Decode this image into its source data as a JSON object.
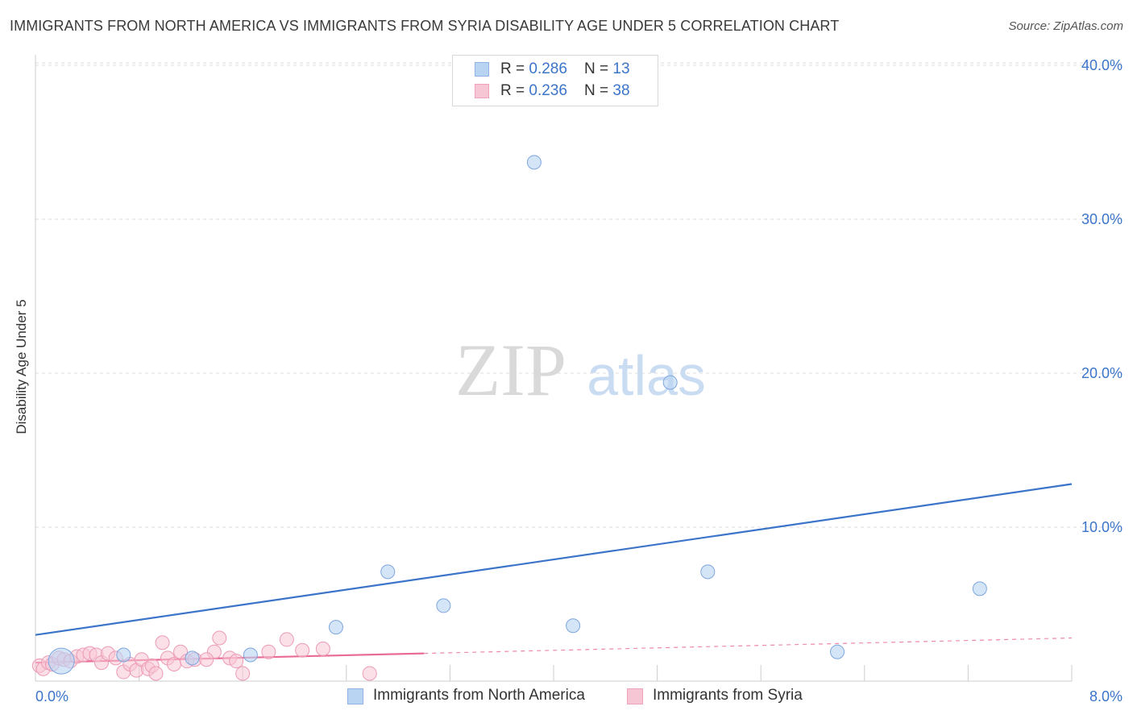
{
  "header": {
    "title": "IMMIGRANTS FROM NORTH AMERICA VS IMMIGRANTS FROM SYRIA DISABILITY AGE UNDER 5 CORRELATION CHART",
    "source": "Source: ZipAtlas.com"
  },
  "colors": {
    "blue": "#3b74c9",
    "blue_fill": "#b9d3f3",
    "pink": "#e96c94",
    "pink_fill": "#f7c6d5",
    "tick_text": "#3b74c9",
    "grid": "#dddddd"
  },
  "legend": {
    "row1": {
      "r_label": "R = ",
      "r_value": "0.286",
      "n_label": "N = ",
      "n_value": "13"
    },
    "row2": {
      "r_label": "R = ",
      "r_value": "0.236",
      "n_label": "N = ",
      "n_value": "38"
    }
  },
  "watermark": {
    "zip": "ZIP",
    "atlas": "atlas"
  },
  "chart_data": {
    "type": "scatter",
    "title": "IMMIGRANTS FROM NORTH AMERICA VS IMMIGRANTS FROM SYRIA DISABILITY AGE UNDER 5 CORRELATION CHART",
    "xlabel": "",
    "ylabel": "Disability Age Under 5",
    "xlim": [
      0,
      8
    ],
    "ylim": [
      0,
      41
    ],
    "x_tick_labels": [
      "0.0%",
      "8.0%"
    ],
    "y_ticks": [
      10,
      20,
      30,
      40
    ],
    "y_tick_labels": [
      "10.0%",
      "20.0%",
      "30.0%",
      "40.0%"
    ],
    "legend_position": "top-center",
    "series": [
      {
        "name": "Immigrants from North America",
        "r": 0.286,
        "n": 13,
        "points": [
          {
            "x": 0.2,
            "y": 1.3,
            "big": true
          },
          {
            "x": 0.68,
            "y": 1.7
          },
          {
            "x": 1.21,
            "y": 1.5
          },
          {
            "x": 1.66,
            "y": 1.7
          },
          {
            "x": 2.32,
            "y": 3.5
          },
          {
            "x": 2.72,
            "y": 7.1
          },
          {
            "x": 3.15,
            "y": 4.9
          },
          {
            "x": 3.85,
            "y": 33.7
          },
          {
            "x": 4.15,
            "y": 3.6
          },
          {
            "x": 4.9,
            "y": 19.4
          },
          {
            "x": 5.19,
            "y": 7.1
          },
          {
            "x": 6.19,
            "y": 1.9
          },
          {
            "x": 7.29,
            "y": 6.0
          }
        ],
        "trend": {
          "x_start": 0,
          "y_start": 3.0,
          "x_end": 8,
          "y_end": 12.8
        }
      },
      {
        "name": "Immigrants from Syria",
        "r": 0.236,
        "n": 38,
        "points": [
          {
            "x": 0.03,
            "y": 1.0
          },
          {
            "x": 0.06,
            "y": 0.8
          },
          {
            "x": 0.1,
            "y": 1.2
          },
          {
            "x": 0.13,
            "y": 1.1
          },
          {
            "x": 0.18,
            "y": 1.5
          },
          {
            "x": 0.22,
            "y": 1.4
          },
          {
            "x": 0.27,
            "y": 1.3
          },
          {
            "x": 0.32,
            "y": 1.6
          },
          {
            "x": 0.37,
            "y": 1.7
          },
          {
            "x": 0.42,
            "y": 1.8
          },
          {
            "x": 0.47,
            "y": 1.7
          },
          {
            "x": 0.51,
            "y": 1.2
          },
          {
            "x": 0.56,
            "y": 1.8
          },
          {
            "x": 0.62,
            "y": 1.5
          },
          {
            "x": 0.68,
            "y": 0.6
          },
          {
            "x": 0.73,
            "y": 1.1
          },
          {
            "x": 0.78,
            "y": 0.7
          },
          {
            "x": 0.82,
            "y": 1.4
          },
          {
            "x": 0.87,
            "y": 0.8
          },
          {
            "x": 0.9,
            "y": 1.0
          },
          {
            "x": 0.93,
            "y": 0.5
          },
          {
            "x": 0.98,
            "y": 2.5
          },
          {
            "x": 1.02,
            "y": 1.5
          },
          {
            "x": 1.07,
            "y": 1.1
          },
          {
            "x": 1.12,
            "y": 1.9
          },
          {
            "x": 1.17,
            "y": 1.3
          },
          {
            "x": 1.23,
            "y": 1.4
          },
          {
            "x": 1.38,
            "y": 1.9
          },
          {
            "x": 1.42,
            "y": 2.8
          },
          {
            "x": 1.5,
            "y": 1.5
          },
          {
            "x": 1.55,
            "y": 1.3
          },
          {
            "x": 1.6,
            "y": 0.5
          },
          {
            "x": 1.8,
            "y": 1.9
          },
          {
            "x": 1.94,
            "y": 2.7
          },
          {
            "x": 2.06,
            "y": 2.0
          },
          {
            "x": 2.22,
            "y": 2.1
          },
          {
            "x": 2.58,
            "y": 0.5
          },
          {
            "x": 1.32,
            "y": 1.4
          }
        ],
        "trend": {
          "x_start": 0,
          "y_start": 1.2,
          "x_solid_end": 3.0,
          "x_end": 8,
          "y_end": 2.8
        }
      }
    ]
  }
}
